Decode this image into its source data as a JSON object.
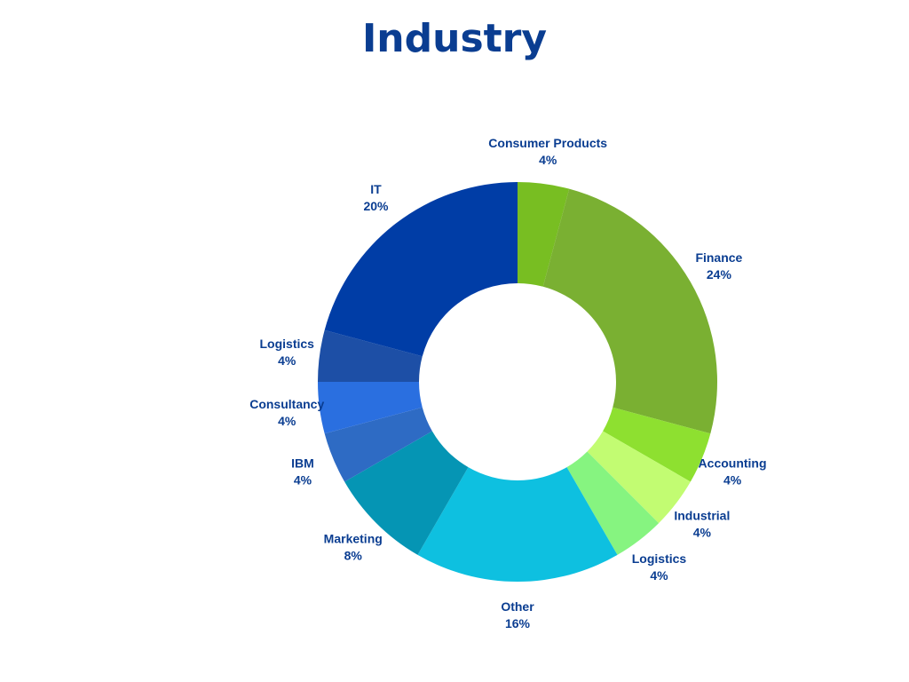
{
  "chart_data": {
    "type": "pie",
    "title": "Industry",
    "donut": true,
    "label_color": "#0a3d91",
    "slices": [
      {
        "label": "Consumer Products",
        "value": 4,
        "display": "4%",
        "color": "#78be22"
      },
      {
        "label": "Finance",
        "value": 24,
        "display": "24%",
        "color": "#7ab032"
      },
      {
        "label": "Accounting",
        "value": 4,
        "display": "4%",
        "color": "#8ee030"
      },
      {
        "label": "Industrial",
        "value": 4,
        "display": "4%",
        "color": "#c2fc72"
      },
      {
        "label": "Logistics",
        "value": 4,
        "display": "4%",
        "color": "#86f480"
      },
      {
        "label": "Other",
        "value": 16,
        "display": "16%",
        "color": "#0ec0e0"
      },
      {
        "label": "Marketing",
        "value": 8,
        "display": "8%",
        "color": "#0595b4"
      },
      {
        "label": "IBM",
        "value": 4,
        "display": "4%",
        "color": "#2e6bc4"
      },
      {
        "label": "Consultancy",
        "value": 4,
        "display": "4%",
        "color": "#2a6fe0"
      },
      {
        "label": "Logistics",
        "value": 4,
        "display": "4%",
        "color": "#1d4fa6"
      },
      {
        "label": "IT",
        "value": 20,
        "display": "20%",
        "color": "#003da6"
      }
    ]
  }
}
